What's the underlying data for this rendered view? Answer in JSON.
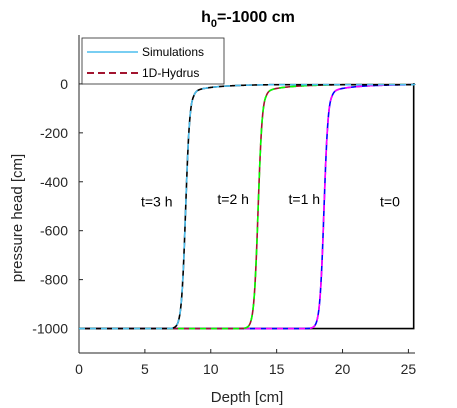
{
  "chart_data": {
    "type": "line",
    "title_main": "h",
    "title_sub": "0",
    "title_rest": "=-1000 cm",
    "xlabel": "Depth [cm]",
    "ylabel": "pressure head [cm]",
    "xlim": [
      0,
      25.5
    ],
    "ylim": [
      -1100,
      200
    ],
    "xticks": [
      0,
      5,
      10,
      15,
      20,
      25
    ],
    "yticks": [
      0,
      -200,
      -400,
      -600,
      -800,
      -1000
    ],
    "grid": false,
    "legend_placement": "top-left",
    "legend": [
      {
        "name": "Simulations",
        "color": "#4DBEEE",
        "dash": "solid"
      },
      {
        "name": "1D-Hydrus",
        "color": "#A2142F",
        "dash": "dashed"
      }
    ],
    "annotations": [
      {
        "text": "t=3 h",
        "x": 5.9,
        "y": -480
      },
      {
        "text": "t=2 h",
        "x": 11.7,
        "y": -470
      },
      {
        "text": "t=1 h",
        "x": 17.1,
        "y": -470
      },
      {
        "text": "t=0",
        "x": 23.6,
        "y": -480
      }
    ],
    "series": [
      {
        "label_ref": "t=0",
        "type": "step",
        "color": "#000000",
        "points": [
          [
            0,
            -1000
          ],
          [
            25.4,
            -1000
          ],
          [
            25.4,
            0
          ],
          [
            25.5,
            0
          ]
        ]
      },
      {
        "label_ref": "t=1 h",
        "front": 18.6,
        "color": "#0000FF",
        "overlay": "#FF00FF"
      },
      {
        "label_ref": "t=2 h",
        "front": 13.6,
        "color": "#A2142F",
        "overlay": "#00FF00"
      },
      {
        "label_ref": "t=3 h",
        "front": 8.1,
        "color": "#000000",
        "overlay": "#4DBEEE"
      }
    ]
  }
}
